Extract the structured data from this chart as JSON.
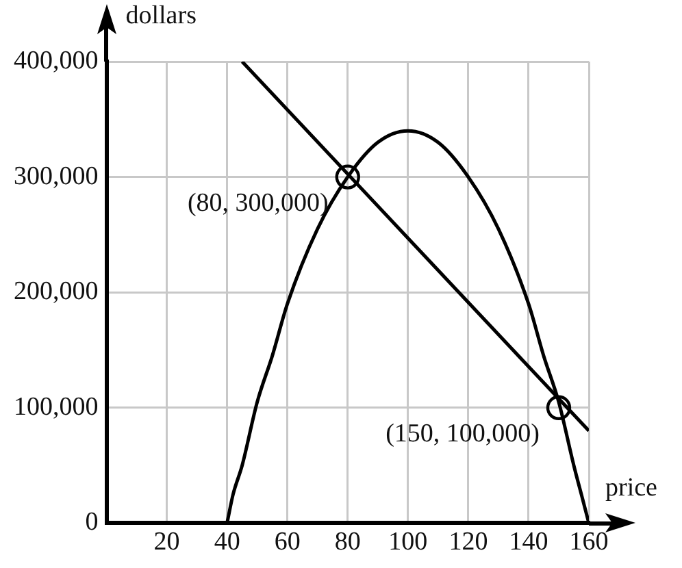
{
  "chart_data": {
    "type": "line",
    "xlabel": "price",
    "ylabel": "dollars",
    "xlim": [
      0,
      160
    ],
    "xticks": [
      20,
      40,
      60,
      80,
      100,
      120,
      140,
      160
    ],
    "ylim": [
      0,
      400000
    ],
    "yticks": [
      {
        "value": 0,
        "label": "0"
      },
      {
        "value": 100000,
        "label": "100,000"
      },
      {
        "value": 200000,
        "label": "200,000"
      },
      {
        "value": 300000,
        "label": "300,000"
      },
      {
        "value": 400000,
        "label": "400,000"
      }
    ],
    "grid": true,
    "line_style": "solid",
    "series": [
      {
        "color": "#000000",
        "x": [
          40,
          42,
          45,
          50,
          55,
          60,
          70,
          80,
          90,
          100,
          110,
          120,
          130,
          140,
          145,
          150,
          155,
          158,
          160
        ],
        "values": [
          0,
          25000,
          50000,
          105000,
          145000,
          190000,
          255000,
          300000,
          330000,
          340000,
          330000,
          300000,
          255000,
          190000,
          145000,
          105000,
          50000,
          20000,
          0
        ]
      },
      {
        "color": "#000000",
        "x": [
          45,
          160
        ],
        "values": [
          400000,
          80000
        ]
      },
      {
        "type": "scatter",
        "color": "#000000",
        "marker": "circle",
        "x": [
          80,
          150
        ],
        "values": [
          300000,
          100000
        ]
      }
    ],
    "annotations": [
      {
        "text": "(80, 300,000)",
        "x": 80,
        "y": 300000
      },
      {
        "text": "(150, 100,000)",
        "x": 150,
        "y": 100000
      }
    ]
  }
}
